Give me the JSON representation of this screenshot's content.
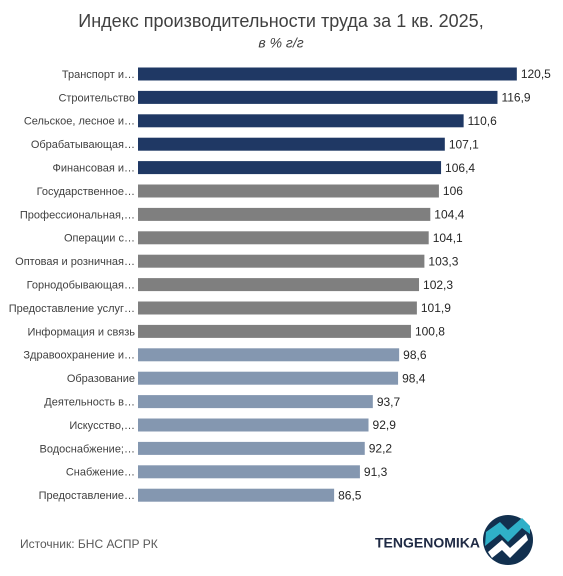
{
  "chart_data": {
    "type": "hbar",
    "title": "Индекс производительности труда за 1 кв. 2025,",
    "subtitle": "в % г/г",
    "categories": [
      "Транспорт и…",
      "Строительство",
      "Сельское, лесное и…",
      "Обрабатывающая…",
      "Финансовая и…",
      "Государственное…",
      "Профессиональная,…",
      "Операции с…",
      "Оптовая и розничная…",
      "Горнодобывающая…",
      "Предоставление услуг…",
      "Информация и связь",
      "Здравоохранение и…",
      "Образование",
      "Деятельность в…",
      "Искусство,…",
      "Водоснабжение;…",
      "Снабжение…",
      "Предоставление…"
    ],
    "values": [
      120.5,
      116.9,
      110.6,
      107.1,
      106.4,
      106,
      104.4,
      104.1,
      103.3,
      102.3,
      101.9,
      100.8,
      98.6,
      98.4,
      93.7,
      92.9,
      92.2,
      91.3,
      86.5
    ],
    "value_labels": [
      "120,5",
      "116,9",
      "110,6",
      "107,1",
      "106,4",
      "106",
      "104,4",
      "104,1",
      "103,3",
      "102,3",
      "101,9",
      "100,8",
      "98,6",
      "98,4",
      "93,7",
      "92,9",
      "92,2",
      "91,3",
      "86,5"
    ],
    "colors": [
      "#1f3864",
      "#1f3864",
      "#1f3864",
      "#1f3864",
      "#1f3864",
      "#7f7f7f",
      "#7f7f7f",
      "#7f7f7f",
      "#7f7f7f",
      "#7f7f7f",
      "#7f7f7f",
      "#7f7f7f",
      "#8497b0",
      "#8497b0",
      "#8497b0",
      "#8497b0",
      "#8497b0",
      "#8497b0",
      "#8497b0"
    ],
    "xlim": [
      50,
      125
    ]
  },
  "source": "Источник: БНС АСПР РК",
  "brand": "TENGENOMIKA"
}
